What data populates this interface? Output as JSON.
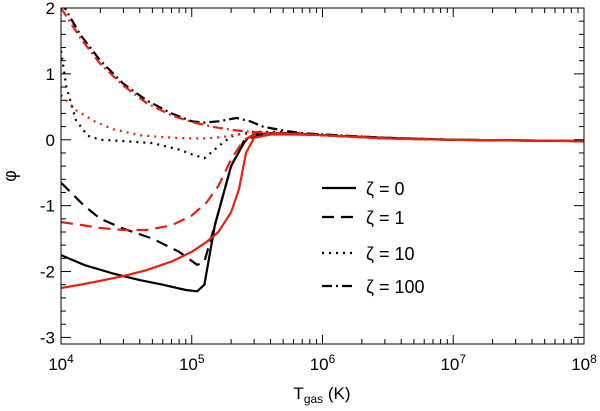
{
  "chart_data": {
    "type": "line",
    "title": "",
    "xlabel": {
      "main": "T",
      "sub": "gas",
      "unit": " (K)"
    },
    "ylabel": "φ",
    "x_scale": "log",
    "xlim": [
      10000,
      100000000
    ],
    "ylim": [
      -3.1,
      2.0
    ],
    "grid": false,
    "legend_position": "center-right",
    "x_ticks": [
      {
        "value": 10000,
        "base": "10",
        "exp": "4"
      },
      {
        "value": 100000,
        "base": "10",
        "exp": "5"
      },
      {
        "value": 1000000,
        "base": "10",
        "exp": "6"
      },
      {
        "value": 10000000,
        "base": "10",
        "exp": "7"
      },
      {
        "value": 100000000,
        "base": "10",
        "exp": "8"
      }
    ],
    "y_ticks": [
      {
        "value": 2,
        "label": "2"
      },
      {
        "value": 1,
        "label": "1"
      },
      {
        "value": 0,
        "label": "0"
      },
      {
        "value": -1,
        "label": "-1"
      },
      {
        "value": -2,
        "label": "-2"
      },
      {
        "value": -3,
        "label": "-3"
      }
    ],
    "legend": [
      {
        "label": "ζ = 0",
        "dash": "solid"
      },
      {
        "label": "ζ = 1",
        "dash": "dash"
      },
      {
        "label": "ζ = 10",
        "dash": "dot"
      },
      {
        "label": "ζ = 100",
        "dash": "dashdot"
      }
    ],
    "series": [
      {
        "color": "#000000",
        "dash": "solid",
        "x": [
          10000,
          15000,
          25000,
          40000,
          60000,
          90000,
          110000,
          125000,
          150000,
          200000,
          250000,
          270000,
          300000,
          400000,
          600000,
          1000000,
          3000000,
          10000000,
          30000000,
          100000000
        ],
        "y": [
          -1.75,
          -1.9,
          -2.03,
          -2.13,
          -2.2,
          -2.28,
          -2.3,
          -2.2,
          -1.3,
          -0.4,
          -0.05,
          0.03,
          0.08,
          0.1,
          0.1,
          0.07,
          0.03,
          0.0,
          -0.01,
          -0.02
        ]
      },
      {
        "color": "#000000",
        "dash": "dash",
        "x": [
          10000,
          15000,
          20000,
          30000,
          50000,
          80000,
          110000,
          125000,
          150000,
          200000,
          250000,
          300000,
          400000,
          600000,
          1000000,
          3000000,
          10000000,
          100000000
        ],
        "y": [
          -0.65,
          -1.0,
          -1.2,
          -1.35,
          -1.5,
          -1.7,
          -1.9,
          -1.85,
          -1.3,
          -0.4,
          -0.02,
          0.05,
          0.09,
          0.1,
          0.08,
          0.03,
          0.0,
          -0.02
        ]
      },
      {
        "color": "#000000",
        "dash": "dot",
        "x": [
          10000,
          11000,
          13000,
          16000,
          20000,
          30000,
          50000,
          80000,
          100000,
          125000,
          160000,
          200000,
          250000,
          300000,
          500000,
          1000000,
          3000000,
          10000000,
          100000000
        ],
        "y": [
          1.35,
          0.8,
          0.3,
          0.06,
          0.0,
          -0.02,
          -0.05,
          -0.15,
          -0.22,
          -0.28,
          -0.1,
          0.05,
          0.1,
          0.12,
          0.12,
          0.07,
          0.02,
          0.0,
          -0.02
        ]
      },
      {
        "color": "#000000",
        "dash": "dashdot",
        "x": [
          10000,
          14000,
          20000,
          30000,
          45000,
          70000,
          100000,
          125000,
          160000,
          220000,
          280000,
          350000,
          500000,
          700000,
          1000000,
          3000000,
          10000000,
          100000000
        ],
        "y": [
          2.1,
          1.6,
          1.2,
          0.85,
          0.6,
          0.4,
          0.28,
          0.26,
          0.28,
          0.33,
          0.28,
          0.2,
          0.14,
          0.1,
          0.08,
          0.03,
          0.0,
          -0.02
        ]
      },
      {
        "color": "#e8200d",
        "dash": "solid",
        "x": [
          10000,
          15000,
          20000,
          30000,
          45000,
          70000,
          100000,
          130000,
          160000,
          200000,
          230000,
          260000,
          300000,
          400000,
          600000,
          1000000,
          3000000,
          10000000,
          100000000
        ],
        "y": [
          -2.25,
          -2.19,
          -2.14,
          -2.07,
          -1.98,
          -1.85,
          -1.7,
          -1.55,
          -1.4,
          -1.1,
          -0.75,
          -0.2,
          0.03,
          0.08,
          0.08,
          0.07,
          0.02,
          0.0,
          -0.02
        ]
      },
      {
        "color": "#e8200d",
        "dash": "dash",
        "x": [
          10000,
          15000,
          20000,
          30000,
          45000,
          70000,
          100000,
          130000,
          160000,
          200000,
          250000,
          300000,
          400000,
          600000,
          1000000,
          3000000,
          10000000,
          100000000
        ],
        "y": [
          -1.25,
          -1.3,
          -1.34,
          -1.37,
          -1.37,
          -1.3,
          -1.15,
          -0.95,
          -0.7,
          -0.3,
          0.0,
          0.07,
          0.09,
          0.09,
          0.07,
          0.02,
          0.0,
          -0.02
        ]
      },
      {
        "color": "#e8200d",
        "dash": "dot",
        "x": [
          10000,
          13000,
          18000,
          25000,
          40000,
          60000,
          90000,
          130000,
          170000,
          220000,
          300000,
          500000,
          1000000,
          3000000,
          10000000,
          100000000
        ],
        "y": [
          0.68,
          0.45,
          0.28,
          0.16,
          0.07,
          0.04,
          0.02,
          0.02,
          0.04,
          0.08,
          0.1,
          0.1,
          0.07,
          0.02,
          0.0,
          -0.02
        ]
      },
      {
        "color": "#e8200d",
        "dash": "dashdot",
        "x": [
          10000,
          14000,
          20000,
          30000,
          45000,
          70000,
          100000,
          150000,
          220000,
          300000,
          500000,
          1000000,
          3000000,
          10000000,
          100000000
        ],
        "y": [
          2.0,
          1.55,
          1.15,
          0.82,
          0.56,
          0.37,
          0.27,
          0.19,
          0.14,
          0.12,
          0.1,
          0.07,
          0.02,
          0.0,
          -0.02
        ]
      }
    ]
  }
}
